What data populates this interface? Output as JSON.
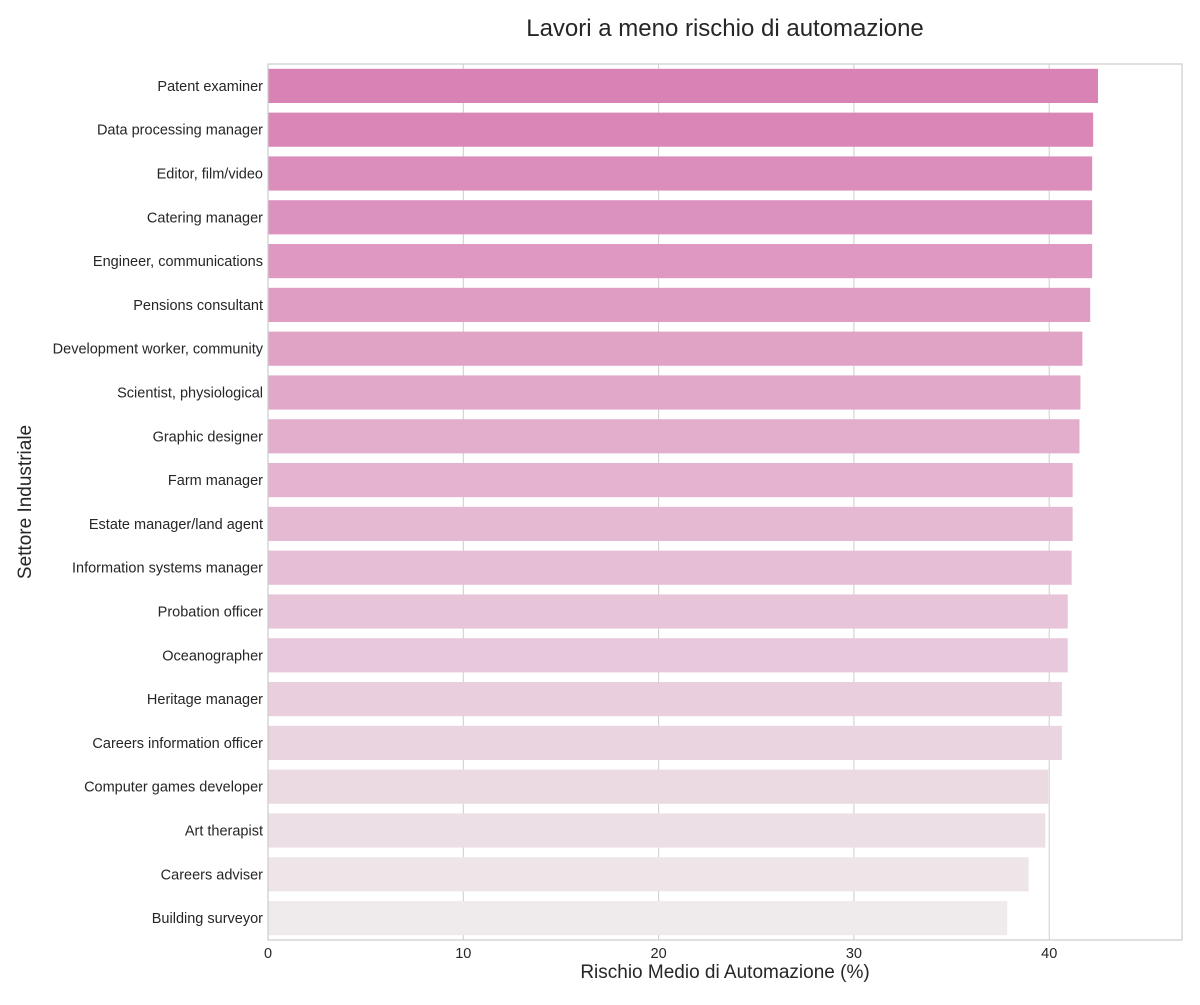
{
  "chart_data": {
    "type": "bar",
    "orientation": "horizontal",
    "title": "Lavori a meno rischio di automazione",
    "xlabel": "Rischio Medio di Automazione (%)",
    "ylabel": "Settore Industriale",
    "xlim": [
      0,
      46.8
    ],
    "xticks": [
      "0",
      "10",
      "20",
      "30",
      "40"
    ],
    "grid": "vertical",
    "legend": "none",
    "categories": [
      "Patent examiner",
      "Data processing manager",
      "Editor, film/video",
      "Catering manager",
      "Engineer, communications",
      "Pensions consultant",
      "Development worker, community",
      "Scientist, physiological",
      "Graphic designer",
      "Farm manager",
      "Estate manager/land agent",
      "Information systems manager",
      "Probation officer",
      "Oceanographer",
      "Heritage manager",
      "Careers information officer",
      "Computer games developer",
      "Art therapist",
      "Careers adviser",
      "Building surveyor"
    ],
    "values": [
      42.5,
      42.25,
      42.2,
      42.2,
      42.2,
      42.1,
      41.7,
      41.6,
      41.55,
      41.2,
      41.2,
      41.15,
      40.95,
      40.95,
      40.65,
      40.65,
      39.95,
      39.8,
      38.95,
      37.85
    ],
    "colors": {
      "start": "#d982b5",
      "end": "#efeaec",
      "grid": "#cccccc",
      "frame": "#cccccc",
      "text": "#262626"
    }
  }
}
